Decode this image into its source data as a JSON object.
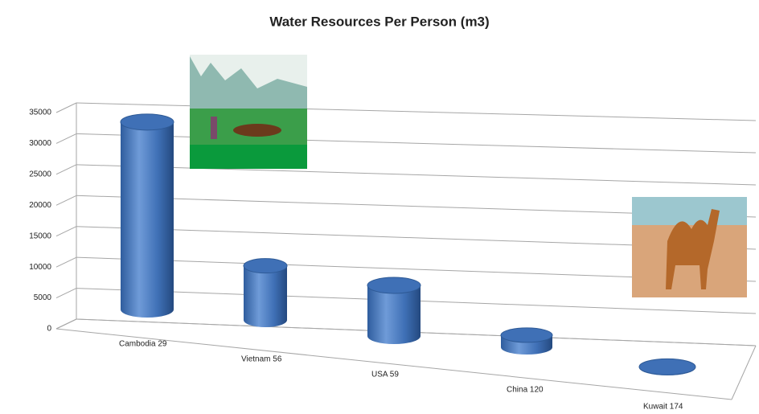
{
  "chart_data": {
    "type": "bar",
    "title": "Water Resources Per Person (m3)",
    "categories": [
      "Cambodia 29",
      "Vietnam 56",
      "USA 59",
      "China 120",
      "Kuwait 174"
    ],
    "values": [
      32000,
      9500,
      9000,
      2200,
      100
    ],
    "color": "#3f70b6",
    "ylim": [
      0,
      35000
    ],
    "yticks": [
      0,
      5000,
      10000,
      15000,
      20000,
      25000,
      30000,
      35000
    ],
    "grid": true
  }
}
